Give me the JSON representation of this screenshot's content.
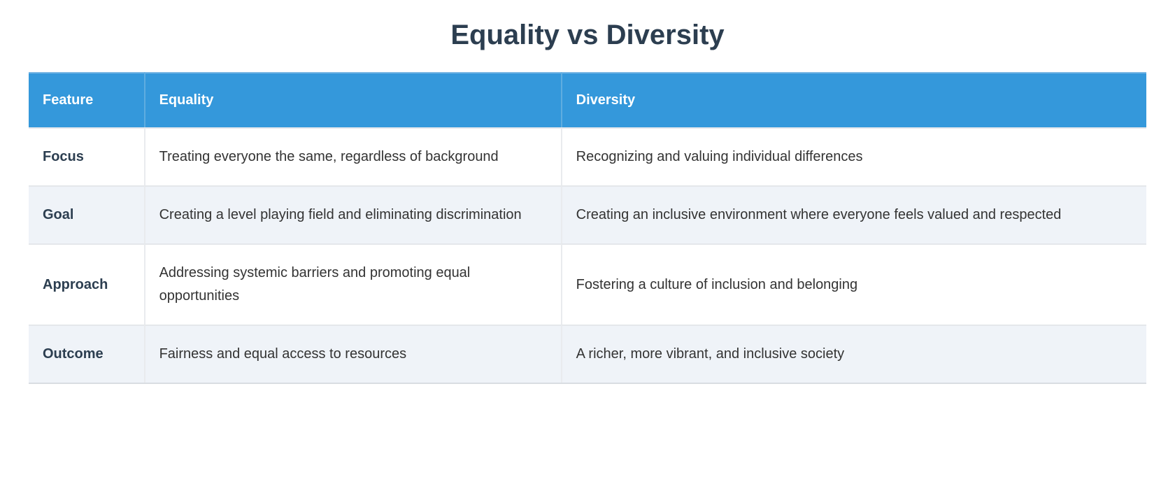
{
  "page": {
    "title": "Equality vs Diversity"
  },
  "table": {
    "columns": [
      {
        "label": "Feature"
      },
      {
        "label": "Equality"
      },
      {
        "label": "Diversity"
      }
    ],
    "rows": [
      {
        "feature": "Focus",
        "equality": "Treating everyone the same, regardless of background",
        "diversity": "Recognizing and valuing individual differences"
      },
      {
        "feature": "Goal",
        "equality": "Creating a level playing field and eliminating discrimination",
        "diversity": "Creating an inclusive environment where everyone feels valued and respected"
      },
      {
        "feature": "Approach",
        "equality": "Addressing systemic barriers and promoting equal opportunities",
        "diversity": "Fostering a culture of inclusion and belonging"
      },
      {
        "feature": "Outcome",
        "equality": "Fairness and equal access to resources",
        "diversity": "A richer, more vibrant, and inclusive society"
      }
    ]
  },
  "colors": {
    "header_background": "#3498db",
    "header_text": "#ffffff",
    "title_text": "#2c3e50",
    "row_stripe_background": "#eff3f8",
    "body_text": "#333333",
    "border": "#e4e7eb"
  }
}
